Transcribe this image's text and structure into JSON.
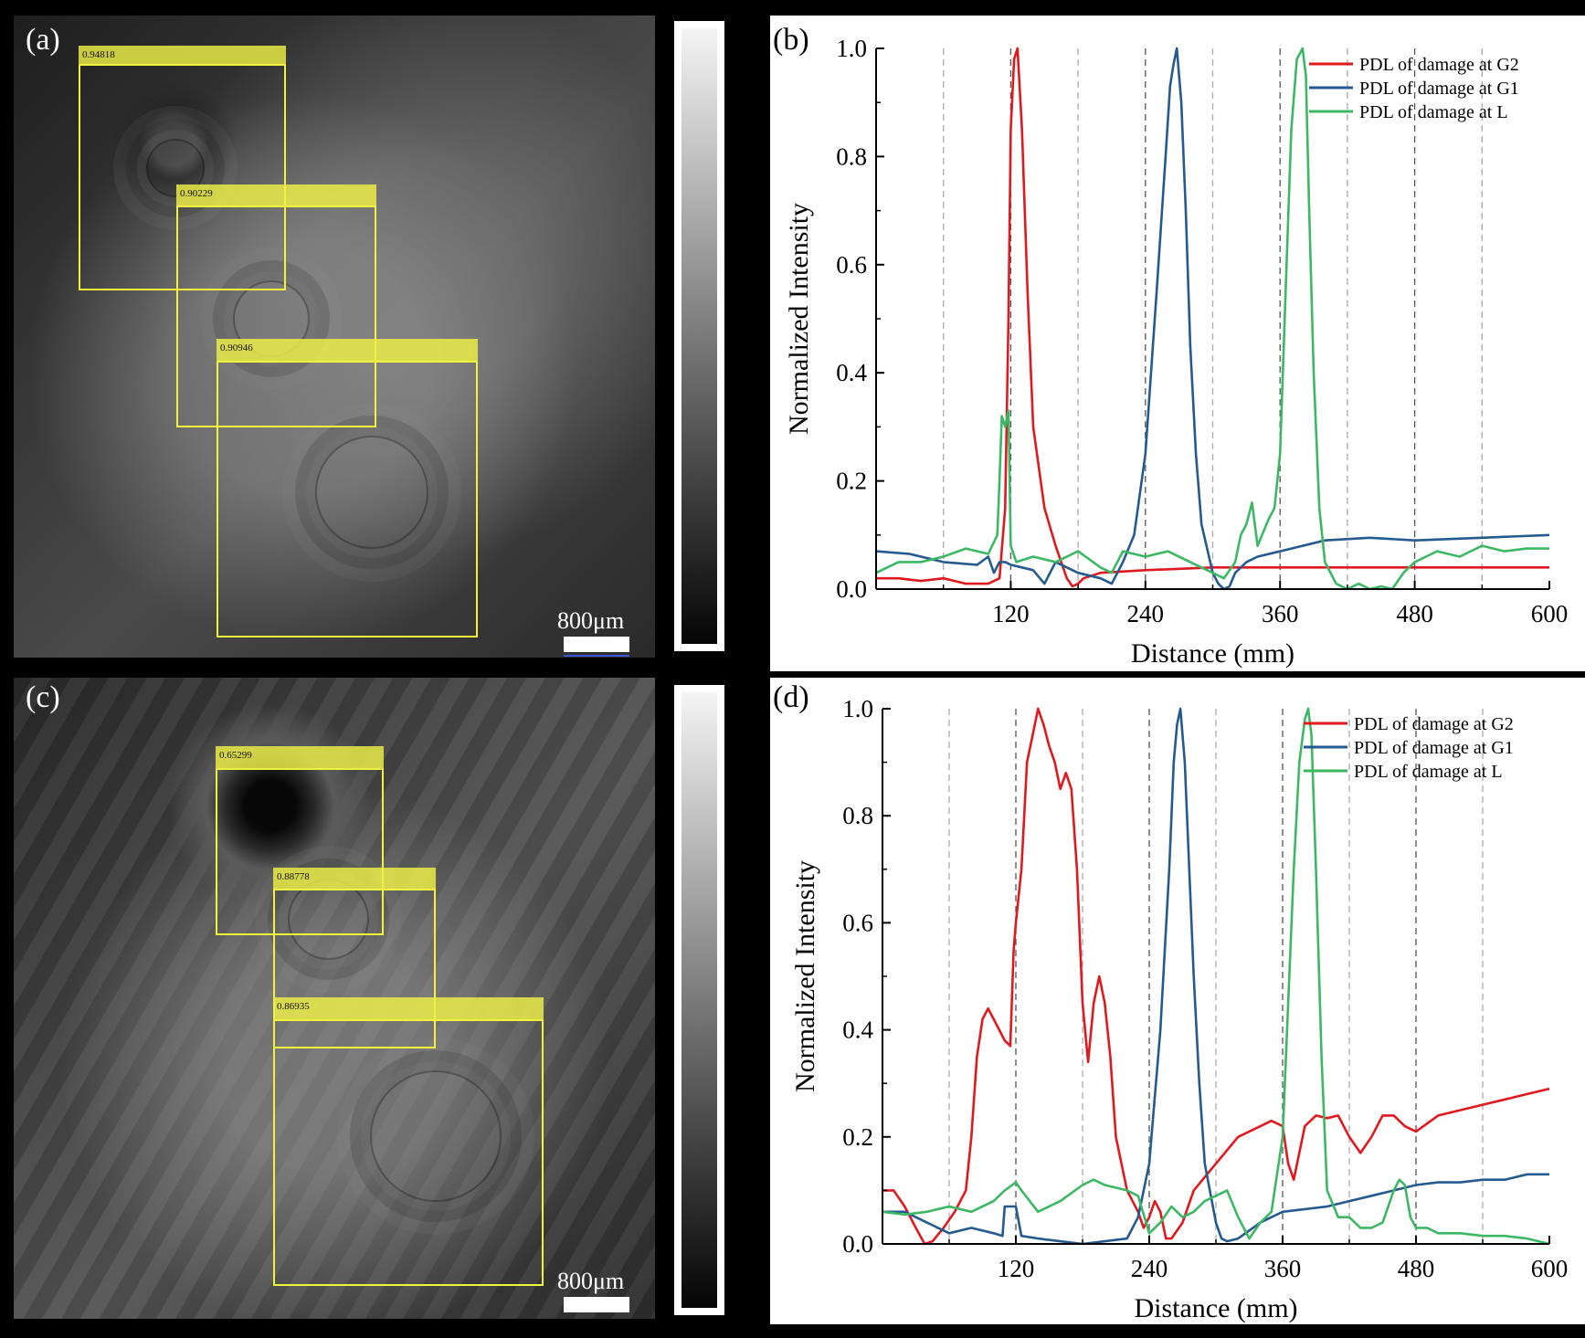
{
  "panel_labels": {
    "a": "(a)",
    "b": "(b)",
    "c": "(c)",
    "d": "(d)"
  },
  "panel_a": {
    "boxes": [
      {
        "score": "0.94818"
      },
      {
        "score": "0.90229"
      },
      {
        "score": "0.90946"
      }
    ],
    "scale_label": "800μm"
  },
  "panel_c": {
    "boxes": [
      {
        "score": "0.65299"
      },
      {
        "score": "0.88778"
      },
      {
        "score": "0.86935"
      }
    ],
    "scale_label": "800μm"
  },
  "chart_data": [
    {
      "id": "b",
      "type": "line",
      "xlabel": "Distance (mm)",
      "ylabel": "Normalized Intensity",
      "xlim": [
        0,
        600
      ],
      "ylim": [
        0,
        1.0
      ],
      "xticks": [
        120,
        240,
        360,
        480,
        600
      ],
      "yticks": [
        0.0,
        0.2,
        0.4,
        0.6,
        0.8,
        1.0
      ],
      "ytick_labels": [
        "0.0",
        "0.2",
        "0.4",
        "0.6",
        "0.8",
        "1.0"
      ],
      "vlines": [
        60,
        120,
        180,
        240,
        300,
        360,
        420,
        480,
        540
      ],
      "legend_position": "top-right",
      "series": [
        {
          "name": "PDL of damage at G2",
          "color": "#e0191e",
          "x": [
            0,
            20,
            40,
            60,
            80,
            100,
            110,
            115,
            118,
            120,
            123,
            126,
            130,
            135,
            140,
            150,
            160,
            170,
            175,
            180,
            185,
            200,
            240,
            300,
            360,
            420,
            480,
            540,
            600
          ],
          "y": [
            0.02,
            0.02,
            0.015,
            0.02,
            0.01,
            0.01,
            0.02,
            0.15,
            0.5,
            0.85,
            0.98,
            1.0,
            0.85,
            0.55,
            0.3,
            0.15,
            0.08,
            0.02,
            0.005,
            0.01,
            0.02,
            0.03,
            0.035,
            0.04,
            0.04,
            0.04,
            0.04,
            0.04,
            0.04
          ]
        },
        {
          "name": "PDL of damage at G1",
          "color": "#255a8f",
          "x": [
            0,
            30,
            60,
            90,
            100,
            105,
            110,
            115,
            120,
            130,
            140,
            150,
            160,
            180,
            200,
            210,
            215,
            220,
            230,
            240,
            250,
            258,
            262,
            265,
            268,
            272,
            276,
            280,
            285,
            290,
            300,
            305,
            310,
            315,
            320,
            330,
            340,
            360,
            400,
            440,
            480,
            540,
            600
          ],
          "y": [
            0.07,
            0.065,
            0.05,
            0.045,
            0.06,
            0.03,
            0.05,
            0.05,
            0.045,
            0.04,
            0.035,
            0.01,
            0.05,
            0.03,
            0.02,
            0.01,
            0.03,
            0.05,
            0.1,
            0.25,
            0.55,
            0.8,
            0.93,
            0.97,
            1.0,
            0.9,
            0.7,
            0.45,
            0.25,
            0.12,
            0.03,
            0.01,
            0.0,
            0.005,
            0.03,
            0.05,
            0.06,
            0.07,
            0.09,
            0.095,
            0.09,
            0.095,
            0.1
          ]
        },
        {
          "name": "PDL of damage at L",
          "color": "#3cb865",
          "x": [
            0,
            20,
            40,
            60,
            80,
            100,
            108,
            110,
            112,
            115,
            118,
            120,
            125,
            140,
            160,
            180,
            200,
            210,
            220,
            240,
            260,
            280,
            300,
            310,
            320,
            325,
            330,
            335,
            340,
            350,
            355,
            360,
            365,
            370,
            375,
            380,
            383,
            386,
            390,
            395,
            400,
            410,
            420,
            430,
            440,
            450,
            460,
            470,
            480,
            490,
            500,
            520,
            540,
            560,
            580,
            600
          ],
          "y": [
            0.03,
            0.05,
            0.05,
            0.06,
            0.075,
            0.065,
            0.1,
            0.2,
            0.32,
            0.3,
            0.33,
            0.08,
            0.05,
            0.06,
            0.05,
            0.07,
            0.04,
            0.03,
            0.07,
            0.06,
            0.07,
            0.05,
            0.03,
            0.02,
            0.05,
            0.1,
            0.12,
            0.16,
            0.08,
            0.13,
            0.15,
            0.25,
            0.55,
            0.85,
            0.98,
            1.0,
            0.95,
            0.7,
            0.4,
            0.15,
            0.05,
            0.01,
            0.0,
            0.01,
            0.0,
            0.005,
            0.0,
            0.03,
            0.05,
            0.06,
            0.07,
            0.06,
            0.08,
            0.07,
            0.075,
            0.075
          ]
        }
      ]
    },
    {
      "id": "d",
      "type": "line",
      "xlabel": "Distance (mm)",
      "ylabel": "Normalized Intensity",
      "xlim": [
        0,
        600
      ],
      "ylim": [
        0,
        1.0
      ],
      "xticks": [
        120,
        240,
        360,
        480,
        600
      ],
      "yticks": [
        0.0,
        0.2,
        0.4,
        0.6,
        0.8,
        1.0
      ],
      "ytick_labels": [
        "0.0",
        "0.2",
        "0.4",
        "0.6",
        "0.8",
        "1.0"
      ],
      "vlines": [
        60,
        120,
        180,
        240,
        300,
        360,
        420,
        480,
        540
      ],
      "legend_position": "top-right",
      "series": [
        {
          "name": "PDL of damage at G2",
          "color": "#e0191e",
          "x": [
            0,
            10,
            20,
            30,
            38,
            45,
            55,
            65,
            75,
            80,
            85,
            90,
            95,
            100,
            105,
            110,
            115,
            118,
            120,
            125,
            130,
            135,
            140,
            145,
            150,
            155,
            160,
            165,
            170,
            175,
            180,
            185,
            190,
            195,
            200,
            205,
            210,
            220,
            230,
            235,
            240,
            245,
            250,
            255,
            260,
            270,
            280,
            300,
            320,
            340,
            350,
            360,
            365,
            370,
            380,
            390,
            400,
            410,
            420,
            430,
            440,
            450,
            460,
            470,
            480,
            500,
            520,
            540,
            560,
            580,
            600
          ],
          "y": [
            0.1,
            0.1,
            0.07,
            0.03,
            0.0,
            0.005,
            0.03,
            0.06,
            0.1,
            0.2,
            0.35,
            0.42,
            0.44,
            0.42,
            0.4,
            0.38,
            0.37,
            0.55,
            0.6,
            0.7,
            0.9,
            0.95,
            1.0,
            0.97,
            0.93,
            0.9,
            0.85,
            0.88,
            0.85,
            0.7,
            0.45,
            0.34,
            0.45,
            0.5,
            0.45,
            0.35,
            0.2,
            0.1,
            0.06,
            0.03,
            0.05,
            0.08,
            0.06,
            0.01,
            0.01,
            0.04,
            0.1,
            0.15,
            0.2,
            0.22,
            0.23,
            0.22,
            0.15,
            0.12,
            0.22,
            0.24,
            0.235,
            0.24,
            0.2,
            0.17,
            0.2,
            0.24,
            0.24,
            0.22,
            0.21,
            0.24,
            0.25,
            0.26,
            0.27,
            0.28,
            0.29
          ]
        },
        {
          "name": "PDL of damage at G1",
          "color": "#255a8f",
          "x": [
            0,
            20,
            40,
            60,
            80,
            100,
            108,
            110,
            120,
            125,
            140,
            160,
            180,
            200,
            220,
            230,
            240,
            250,
            258,
            262,
            265,
            268,
            272,
            276,
            280,
            285,
            290,
            300,
            305,
            310,
            320,
            340,
            360,
            380,
            400,
            420,
            440,
            460,
            480,
            500,
            520,
            540,
            560,
            580,
            600
          ],
          "y": [
            0.06,
            0.06,
            0.04,
            0.02,
            0.03,
            0.02,
            0.015,
            0.07,
            0.07,
            0.015,
            0.01,
            0.005,
            0.0,
            0.005,
            0.01,
            0.05,
            0.15,
            0.4,
            0.7,
            0.9,
            0.97,
            1.0,
            0.9,
            0.7,
            0.5,
            0.3,
            0.15,
            0.04,
            0.01,
            0.005,
            0.01,
            0.04,
            0.06,
            0.065,
            0.07,
            0.08,
            0.09,
            0.1,
            0.11,
            0.115,
            0.115,
            0.12,
            0.12,
            0.13,
            0.13
          ]
        },
        {
          "name": "PDL of damage at L",
          "color": "#3cb865",
          "x": [
            0,
            20,
            40,
            60,
            80,
            100,
            110,
            120,
            125,
            140,
            160,
            180,
            190,
            200,
            220,
            230,
            240,
            250,
            260,
            270,
            280,
            290,
            300,
            310,
            320,
            330,
            340,
            350,
            360,
            365,
            370,
            375,
            380,
            383,
            386,
            390,
            395,
            400,
            410,
            420,
            430,
            440,
            450,
            460,
            465,
            470,
            475,
            480,
            490,
            500,
            520,
            540,
            560,
            580,
            600
          ],
          "y": [
            0.06,
            0.055,
            0.06,
            0.07,
            0.06,
            0.08,
            0.1,
            0.115,
            0.1,
            0.06,
            0.08,
            0.11,
            0.12,
            0.11,
            0.1,
            0.09,
            0.02,
            0.04,
            0.07,
            0.05,
            0.06,
            0.08,
            0.09,
            0.1,
            0.05,
            0.01,
            0.04,
            0.06,
            0.2,
            0.45,
            0.7,
            0.9,
            0.98,
            1.0,
            0.95,
            0.7,
            0.35,
            0.1,
            0.05,
            0.05,
            0.03,
            0.03,
            0.04,
            0.1,
            0.12,
            0.11,
            0.05,
            0.03,
            0.03,
            0.02,
            0.02,
            0.015,
            0.015,
            0.01,
            0.0
          ]
        }
      ]
    }
  ]
}
